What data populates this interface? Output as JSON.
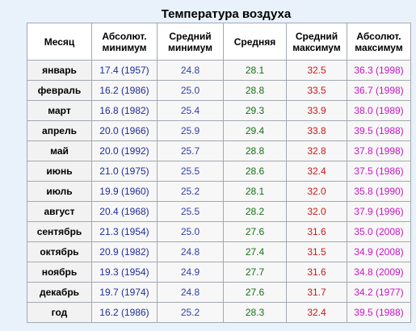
{
  "title": "Температура воздуха",
  "headers": {
    "month": "Месяц",
    "abs_min": [
      "Абсолют.",
      "минимум"
    ],
    "avg_min": [
      "Средний",
      "минимум"
    ],
    "avg": "Средняя",
    "avg_max": [
      "Средний",
      "максимум"
    ],
    "abs_max": [
      "Абсолют.",
      "максимум"
    ]
  },
  "colors": {
    "abs_min": "#1f2d9b",
    "avg_min": "#3341a9",
    "avg": "#157015",
    "avg_max": "#d01717",
    "abs_max": "#c716c1",
    "page_background": "#e9f1fb",
    "border": "#a2a9b1"
  },
  "rows": [
    {
      "month": "январь",
      "abs_min": "17.4 (1957)",
      "avg_min": "24.8",
      "avg": "28.1",
      "avg_max": "32.5",
      "abs_max": "36.3 (1998)"
    },
    {
      "month": "февраль",
      "abs_min": "16.2 (1986)",
      "avg_min": "25.0",
      "avg": "28.8",
      "avg_max": "33.5",
      "abs_max": "36.7 (1998)"
    },
    {
      "month": "март",
      "abs_min": "16.8 (1982)",
      "avg_min": "25.4",
      "avg": "29.3",
      "avg_max": "33.9",
      "abs_max": "38.0 (1989)"
    },
    {
      "month": "апрель",
      "abs_min": "20.0 (1966)",
      "avg_min": "25.9",
      "avg": "29.4",
      "avg_max": "33.8",
      "abs_max": "39.5 (1988)"
    },
    {
      "month": "май",
      "abs_min": "20.0 (1992)",
      "avg_min": "25.7",
      "avg": "28.8",
      "avg_max": "32.8",
      "abs_max": "37.8 (1998)"
    },
    {
      "month": "июнь",
      "abs_min": "21.0 (1975)",
      "avg_min": "25.5",
      "avg": "28.6",
      "avg_max": "32.4",
      "abs_max": "37.5 (1986)"
    },
    {
      "month": "июль",
      "abs_min": "19.9 (1960)",
      "avg_min": "25.2",
      "avg": "28.1",
      "avg_max": "32.0",
      "abs_max": "35.8 (1990)"
    },
    {
      "month": "август",
      "abs_min": "20.4 (1968)",
      "avg_min": "25.5",
      "avg": "28.2",
      "avg_max": "32.0",
      "abs_max": "37.9 (1996)"
    },
    {
      "month": "сентябрь",
      "abs_min": "21.3 (1954)",
      "avg_min": "25.0",
      "avg": "27.6",
      "avg_max": "31.6",
      "abs_max": "35.0 (2008)"
    },
    {
      "month": "октябрь",
      "abs_min": "20.9 (1982)",
      "avg_min": "24.8",
      "avg": "27.4",
      "avg_max": "31.5",
      "abs_max": "34.9 (2008)"
    },
    {
      "month": "ноябрь",
      "abs_min": "19.3 (1954)",
      "avg_min": "24.9",
      "avg": "27.7",
      "avg_max": "31.6",
      "abs_max": "34.8 (2009)"
    },
    {
      "month": "декабрь",
      "abs_min": "19.7 (1974)",
      "avg_min": "24.8",
      "avg": "27.6",
      "avg_max": "31.7",
      "abs_max": "34.2 (1977)"
    },
    {
      "month": "год",
      "abs_min": "16.2 (1986)",
      "avg_min": "25.2",
      "avg": "28.3",
      "avg_max": "32.4",
      "abs_max": "39.5 (1988)"
    }
  ]
}
